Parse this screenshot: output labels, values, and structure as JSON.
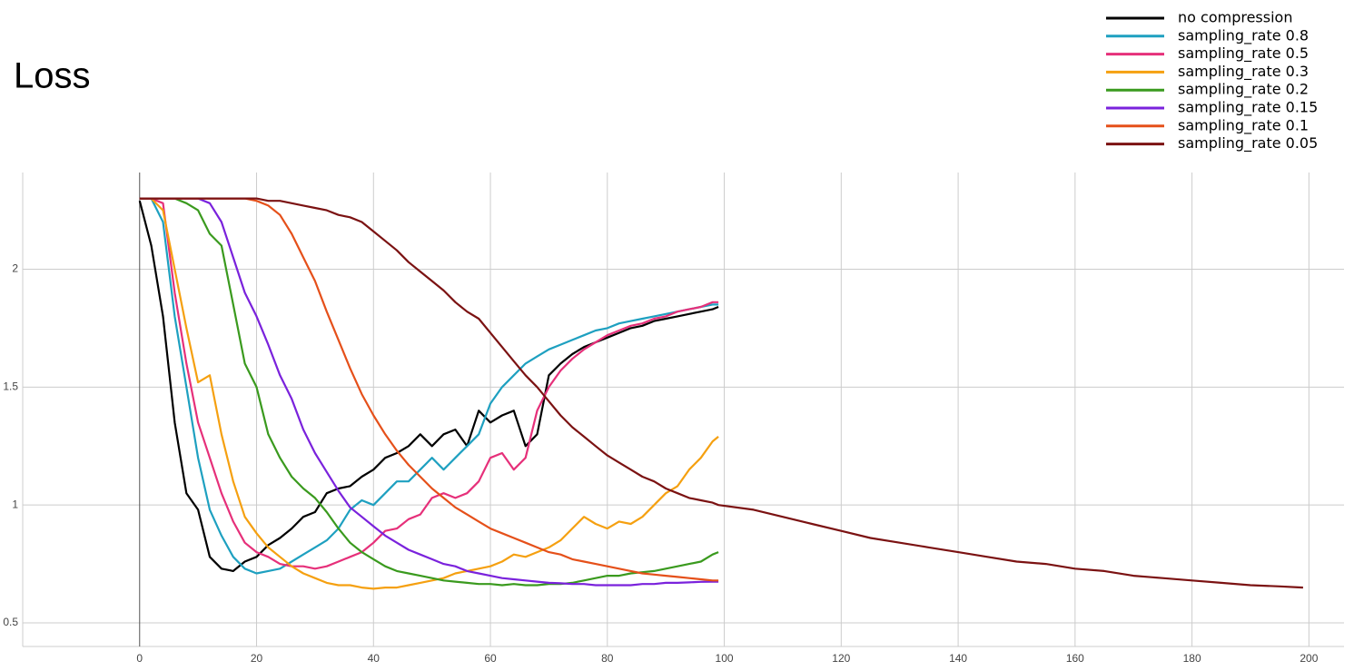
{
  "chart_data": {
    "type": "line",
    "title": "Loss",
    "x": [
      0,
      2,
      4,
      6,
      8,
      10,
      12,
      14,
      16,
      18,
      20,
      22,
      24,
      26,
      28,
      30,
      32,
      34,
      36,
      38,
      40,
      42,
      44,
      46,
      48,
      50,
      52,
      54,
      56,
      58,
      60,
      62,
      64,
      66,
      68,
      70,
      72,
      74,
      76,
      78,
      80,
      82,
      84,
      86,
      88,
      90,
      92,
      94,
      96,
      98,
      99,
      105,
      110,
      115,
      120,
      125,
      130,
      135,
      140,
      145,
      150,
      155,
      160,
      165,
      170,
      175,
      180,
      185,
      190,
      195,
      199
    ],
    "xlim": [
      -20,
      206
    ],
    "xticks": [
      0,
      20,
      40,
      60,
      80,
      100,
      120,
      140,
      160,
      180,
      200
    ],
    "ylim": [
      0.4,
      2.41
    ],
    "yticks": [
      0.5,
      1,
      1.5,
      2
    ],
    "grid": true,
    "legend": "top-right",
    "series": [
      {
        "name": "no compression",
        "color": "#000000",
        "values": [
          2.29,
          2.1,
          1.8,
          1.35,
          1.05,
          0.98,
          0.78,
          0.73,
          0.72,
          0.76,
          0.78,
          0.83,
          0.86,
          0.9,
          0.95,
          0.97,
          1.05,
          1.07,
          1.08,
          1.12,
          1.15,
          1.2,
          1.22,
          1.25,
          1.3,
          1.25,
          1.3,
          1.32,
          1.25,
          1.4,
          1.35,
          1.38,
          1.4,
          1.25,
          1.3,
          1.55,
          1.6,
          1.64,
          1.67,
          1.69,
          1.71,
          1.73,
          1.75,
          1.76,
          1.78,
          1.79,
          1.8,
          1.81,
          1.82,
          1.83,
          1.84,
          null,
          null,
          null,
          null,
          null,
          null,
          null,
          null,
          null,
          null,
          null,
          null,
          null,
          null,
          null,
          null,
          null,
          null,
          null,
          null
        ]
      },
      {
        "name": "sampling_rate 0.8",
        "color": "#1ea0c0",
        "values": [
          2.3,
          2.3,
          2.2,
          1.8,
          1.5,
          1.2,
          0.98,
          0.87,
          0.78,
          0.73,
          0.71,
          0.72,
          0.73,
          0.76,
          0.79,
          0.82,
          0.85,
          0.9,
          0.98,
          1.02,
          1.0,
          1.05,
          1.1,
          1.1,
          1.15,
          1.2,
          1.15,
          1.2,
          1.25,
          1.3,
          1.43,
          1.5,
          1.55,
          1.6,
          1.63,
          1.66,
          1.68,
          1.7,
          1.72,
          1.74,
          1.75,
          1.77,
          1.78,
          1.79,
          1.8,
          1.81,
          1.82,
          1.83,
          1.84,
          1.85,
          1.85,
          null,
          null,
          null,
          null,
          null,
          null,
          null,
          null,
          null,
          null,
          null,
          null,
          null,
          null,
          null,
          null,
          null,
          null,
          null,
          null
        ]
      },
      {
        "name": "sampling_rate 0.5",
        "color": "#e6307a",
        "values": [
          2.3,
          2.3,
          2.28,
          1.9,
          1.6,
          1.35,
          1.2,
          1.05,
          0.93,
          0.84,
          0.8,
          0.78,
          0.75,
          0.74,
          0.74,
          0.73,
          0.74,
          0.76,
          0.78,
          0.8,
          0.84,
          0.89,
          0.9,
          0.94,
          0.96,
          1.03,
          1.05,
          1.03,
          1.05,
          1.1,
          1.2,
          1.22,
          1.15,
          1.2,
          1.4,
          1.5,
          1.57,
          1.62,
          1.66,
          1.69,
          1.72,
          1.74,
          1.76,
          1.77,
          1.79,
          1.8,
          1.82,
          1.83,
          1.84,
          1.86,
          1.86,
          null,
          null,
          null,
          null,
          null,
          null,
          null,
          null,
          null,
          null,
          null,
          null,
          null,
          null,
          null,
          null,
          null,
          null,
          null,
          null
        ]
      },
      {
        "name": "sampling_rate 0.3",
        "color": "#f5a010",
        "values": [
          2.3,
          2.3,
          2.25,
          2.0,
          1.75,
          1.52,
          1.55,
          1.3,
          1.1,
          0.95,
          0.88,
          0.82,
          0.78,
          0.74,
          0.71,
          0.69,
          0.67,
          0.66,
          0.66,
          0.65,
          0.645,
          0.65,
          0.65,
          0.66,
          0.67,
          0.68,
          0.69,
          0.71,
          0.72,
          0.73,
          0.74,
          0.76,
          0.79,
          0.78,
          0.8,
          0.82,
          0.85,
          0.9,
          0.95,
          0.92,
          0.9,
          0.93,
          0.92,
          0.95,
          1.0,
          1.05,
          1.08,
          1.15,
          1.2,
          1.27,
          1.29,
          null,
          null,
          null,
          null,
          null,
          null,
          null,
          null,
          null,
          null,
          null,
          null,
          null,
          null,
          null,
          null,
          null,
          null,
          null,
          null
        ]
      },
      {
        "name": "sampling_rate 0.2",
        "color": "#3a9a1e",
        "values": [
          2.3,
          2.3,
          2.3,
          2.3,
          2.28,
          2.25,
          2.15,
          2.1,
          1.85,
          1.6,
          1.5,
          1.3,
          1.2,
          1.12,
          1.07,
          1.03,
          0.97,
          0.9,
          0.84,
          0.8,
          0.77,
          0.74,
          0.72,
          0.71,
          0.7,
          0.69,
          0.68,
          0.675,
          0.67,
          0.665,
          0.665,
          0.66,
          0.665,
          0.66,
          0.66,
          0.665,
          0.665,
          0.67,
          0.68,
          0.69,
          0.7,
          0.7,
          0.71,
          0.715,
          0.72,
          0.73,
          0.74,
          0.75,
          0.76,
          0.79,
          0.8,
          null,
          null,
          null,
          null,
          null,
          null,
          null,
          null,
          null,
          null,
          null,
          null,
          null,
          null,
          null,
          null,
          null,
          null,
          null,
          null
        ]
      },
      {
        "name": "sampling_rate 0.15",
        "color": "#7a22dc",
        "values": [
          2.3,
          2.3,
          2.3,
          2.3,
          2.3,
          2.3,
          2.28,
          2.2,
          2.05,
          1.9,
          1.8,
          1.68,
          1.55,
          1.45,
          1.32,
          1.22,
          1.14,
          1.06,
          0.99,
          0.95,
          0.91,
          0.87,
          0.84,
          0.81,
          0.79,
          0.77,
          0.75,
          0.74,
          0.72,
          0.71,
          0.7,
          0.69,
          0.685,
          0.68,
          0.675,
          0.67,
          0.668,
          0.665,
          0.665,
          0.66,
          0.66,
          0.66,
          0.66,
          0.665,
          0.665,
          0.67,
          0.67,
          0.672,
          0.674,
          0.675,
          0.675,
          null,
          null,
          null,
          null,
          null,
          null,
          null,
          null,
          null,
          null,
          null,
          null,
          null,
          null,
          null,
          null,
          null,
          null,
          null,
          null
        ]
      },
      {
        "name": "sampling_rate 0.1",
        "color": "#e5501a",
        "values": [
          2.3,
          2.3,
          2.3,
          2.3,
          2.3,
          2.3,
          2.3,
          2.3,
          2.3,
          2.3,
          2.29,
          2.27,
          2.23,
          2.15,
          2.05,
          1.95,
          1.82,
          1.7,
          1.58,
          1.47,
          1.38,
          1.3,
          1.23,
          1.17,
          1.12,
          1.07,
          1.03,
          0.99,
          0.96,
          0.93,
          0.9,
          0.88,
          0.86,
          0.84,
          0.82,
          0.8,
          0.79,
          0.77,
          0.76,
          0.75,
          0.74,
          0.73,
          0.72,
          0.71,
          0.705,
          0.7,
          0.695,
          0.69,
          0.685,
          0.68,
          0.68,
          null,
          null,
          null,
          null,
          null,
          null,
          null,
          null,
          null,
          null,
          null,
          null,
          null,
          null,
          null,
          null,
          null,
          null,
          null,
          null
        ]
      },
      {
        "name": "sampling_rate 0.05",
        "color": "#7b1212",
        "values": [
          2.3,
          2.3,
          2.3,
          2.3,
          2.3,
          2.3,
          2.3,
          2.3,
          2.3,
          2.3,
          2.3,
          2.29,
          2.29,
          2.28,
          2.27,
          2.26,
          2.25,
          2.23,
          2.22,
          2.2,
          2.16,
          2.12,
          2.08,
          2.03,
          1.99,
          1.95,
          1.91,
          1.86,
          1.82,
          1.79,
          1.73,
          1.67,
          1.61,
          1.55,
          1.5,
          1.44,
          1.38,
          1.33,
          1.29,
          1.25,
          1.21,
          1.18,
          1.15,
          1.12,
          1.1,
          1.07,
          1.05,
          1.03,
          1.02,
          1.01,
          1.0,
          0.98,
          0.95,
          0.92,
          0.89,
          0.86,
          0.84,
          0.82,
          0.8,
          0.78,
          0.76,
          0.75,
          0.73,
          0.72,
          0.7,
          0.69,
          0.68,
          0.67,
          0.66,
          0.655,
          0.65
        ]
      }
    ]
  }
}
